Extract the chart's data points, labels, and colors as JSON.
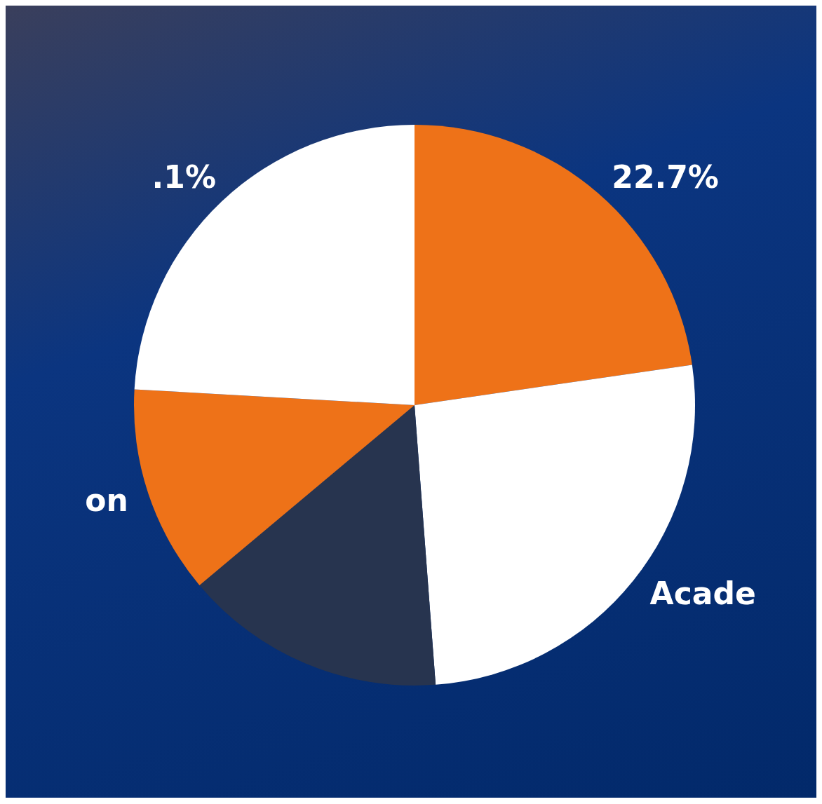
{
  "chart_data": {
    "type": "pie",
    "categories": [
      null,
      "Acade",
      null,
      "on",
      null
    ],
    "values": [
      22.7,
      26.1,
      15.1,
      12.0,
      24.1
    ],
    "colors": [
      "#ee7218",
      "#ffffff",
      "#27344f",
      "#ee7218",
      "#ffffff"
    ],
    "value_labels": [
      "22.7%",
      null,
      null,
      null,
      null
    ],
    "annotations": [
      ".1%"
    ],
    "legend": false
  }
}
